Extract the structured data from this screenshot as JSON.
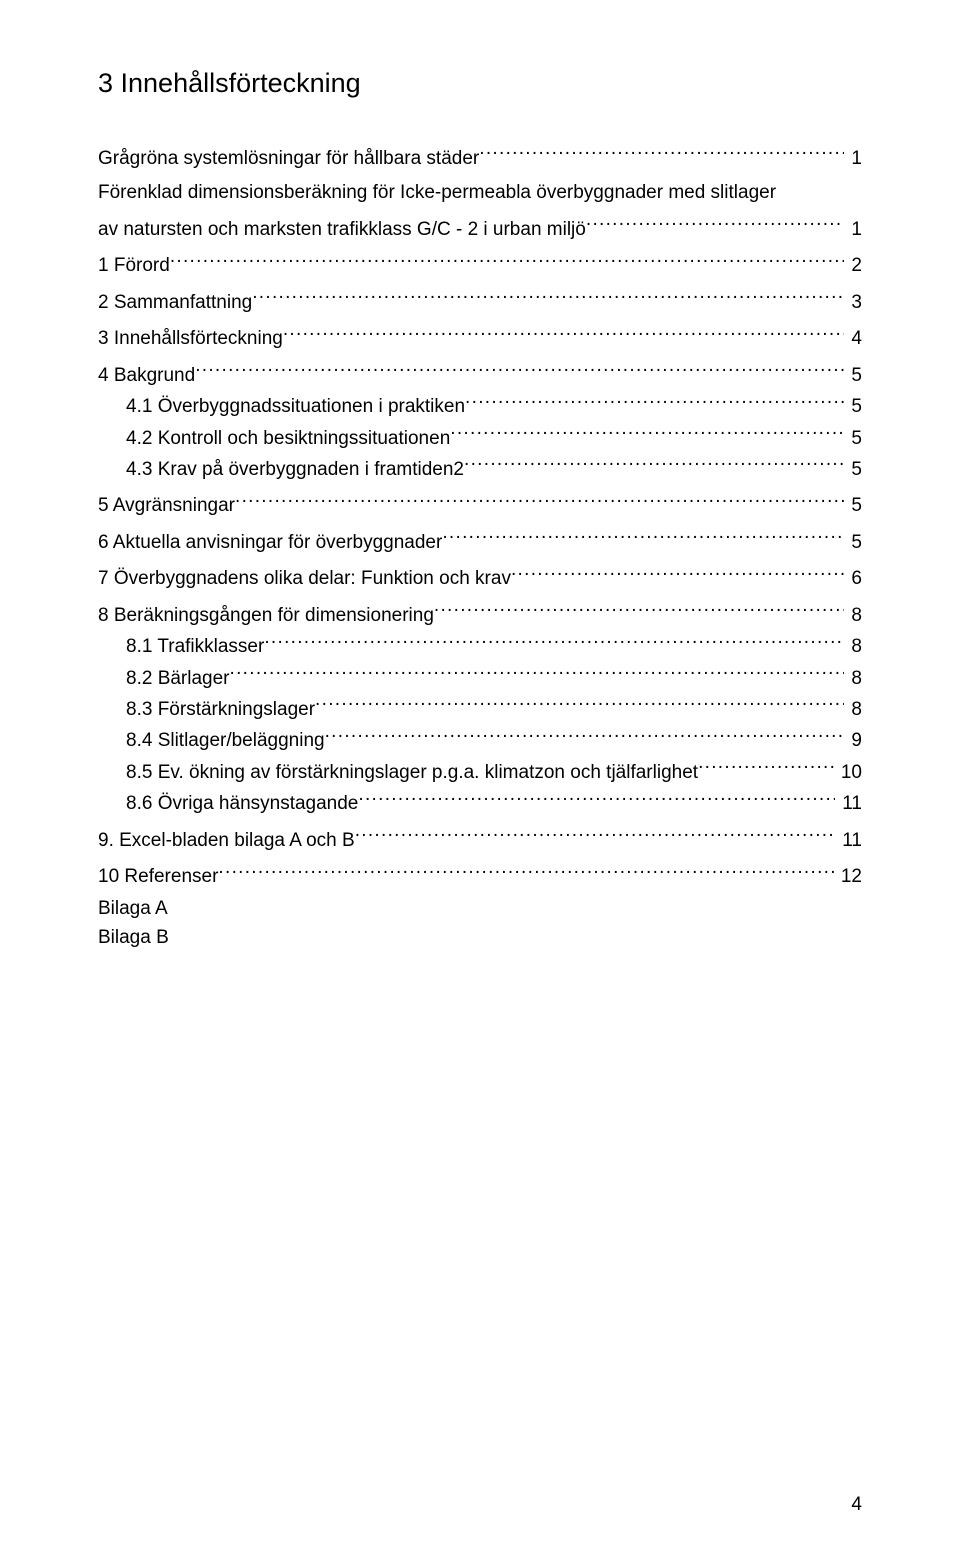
{
  "title": "3 Innehållsförteckning",
  "toc": [
    {
      "level": 1,
      "label": "Grågröna systemlösningar för hållbara städer",
      "page": "1"
    },
    {
      "level": 1,
      "label": "Förenklad dimensionsberäkning för Icke-permeabla överbyggnader med slitlager",
      "page": ""
    },
    {
      "level": 1,
      "label": "av natursten och marksten trafikklass G/C - 2 i urban miljö",
      "page": "1"
    },
    {
      "level": 1,
      "label": "1 Förord",
      "page": "2"
    },
    {
      "level": 1,
      "label": "2 Sammanfattning",
      "page": "3"
    },
    {
      "level": 1,
      "label": "3 Innehållsförteckning",
      "page": "4"
    },
    {
      "level": 1,
      "label": "4 Bakgrund",
      "page": "5"
    },
    {
      "level": 2,
      "label": "4.1 Överbyggnadssituationen i praktiken",
      "page": "5"
    },
    {
      "level": 2,
      "label": "4.2 Kontroll och besiktningssituationen",
      "page": "5"
    },
    {
      "level": 2,
      "label": "4.3 Krav på överbyggnaden i framtiden2",
      "page": "5"
    },
    {
      "level": 1,
      "label": "5 Avgränsningar",
      "page": "5"
    },
    {
      "level": 1,
      "label": "6 Aktuella anvisningar för överbyggnader",
      "page": "5"
    },
    {
      "level": 1,
      "label": "7 Överbyggnadens olika delar: Funktion och krav",
      "page": "6"
    },
    {
      "level": 1,
      "label": "8 Beräkningsgången för dimensionering",
      "page": "8"
    },
    {
      "level": 2,
      "label": "8.1 Trafikklasser",
      "page": "8"
    },
    {
      "level": 2,
      "label": "8.2 Bärlager",
      "page": "8"
    },
    {
      "level": 2,
      "label": "8.3 Förstärkningslager",
      "page": "8"
    },
    {
      "level": 2,
      "label": "8.4 Slitlager/beläggning",
      "page": "9"
    },
    {
      "level": 2,
      "label": "8.5 Ev. ökning av förstärkningslager p.g.a. klimatzon och tjälfarlighet",
      "page": "10"
    },
    {
      "level": 2,
      "label": "8.6 Övriga hänsynstagande",
      "page": "11"
    },
    {
      "level": 1,
      "label": "9. Excel-bladen bilaga A och B",
      "page": "11"
    },
    {
      "level": 1,
      "label": "10 Referenser",
      "page": "12"
    },
    {
      "level": 0,
      "label": "Bilaga A",
      "page": ""
    },
    {
      "level": 0,
      "label": "Bilaga B",
      "page": ""
    }
  ],
  "pageNumber": "4"
}
